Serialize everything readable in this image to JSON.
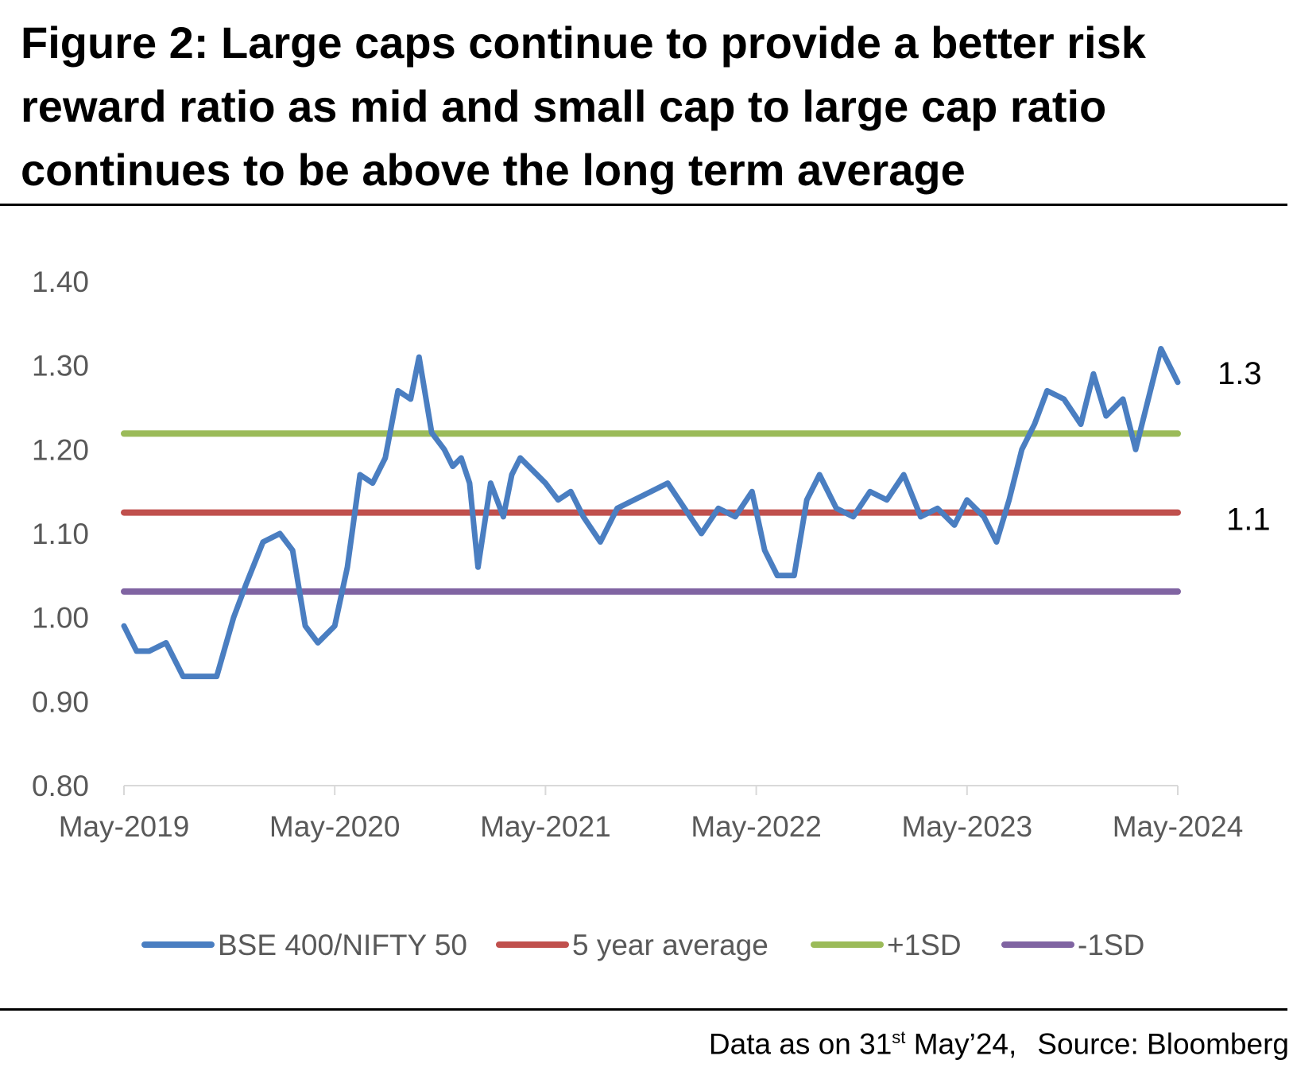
{
  "title": "Figure 2: Large caps continue to provide a better risk reward ratio as mid and small cap to large cap ratio continues to be above the long term average",
  "footer": {
    "data_as_on_prefix": "Data as on 31",
    "data_as_on_sup": "st",
    "data_as_on_suffix": " May’24,",
    "source": "Source: Bloomberg"
  },
  "chart_data": {
    "type": "line",
    "title": "Figure 2: Large caps continue to provide a better risk reward ratio as mid and small cap to large cap ratio continues to be above the long term average",
    "xlabel": "",
    "ylabel": "",
    "ylim": [
      0.8,
      1.4
    ],
    "yticks": [
      "1.40",
      "1.30",
      "1.20",
      "1.10",
      "1.00",
      "0.90",
      "0.80"
    ],
    "xlim": [
      2019.0,
      2024.0
    ],
    "xticks": [
      "May-2019",
      "May-2020",
      "May-2021",
      "May-2022",
      "May-2023",
      "May-2024"
    ],
    "legend_position": "bottom",
    "grid": false,
    "colors": {
      "ratio": "#4A7EC1",
      "average": "#C0504D",
      "plus_sd": "#9BBB59",
      "minus_sd": "#8064A2",
      "axis": "#d9d9d9",
      "tick_text": "#595959"
    },
    "end_labels": [
      "1.3",
      "1.1"
    ],
    "series": [
      {
        "name": "BSE 400/NIFTY 50",
        "x": [
          2019.0,
          2019.06,
          2019.12,
          2019.2,
          2019.28,
          2019.36,
          2019.44,
          2019.52,
          2019.58,
          2019.66,
          2019.74,
          2019.8,
          2019.86,
          2019.92,
          2020.0,
          2020.06,
          2020.12,
          2020.18,
          2020.24,
          2020.3,
          2020.36,
          2020.4,
          2020.46,
          2020.52,
          2020.56,
          2020.6,
          2020.64,
          2020.68,
          2020.74,
          2020.8,
          2020.84,
          2020.88,
          2020.96,
          2021.0,
          2021.06,
          2021.12,
          2021.18,
          2021.26,
          2021.34,
          2021.42,
          2021.5,
          2021.58,
          2021.66,
          2021.74,
          2021.82,
          2021.9,
          2021.98,
          2022.04,
          2022.1,
          2022.18,
          2022.24,
          2022.3,
          2022.38,
          2022.46,
          2022.54,
          2022.62,
          2022.7,
          2022.78,
          2022.86,
          2022.94,
          2023.0,
          2023.08,
          2023.14,
          2023.2,
          2023.26,
          2023.32,
          2023.38,
          2023.46,
          2023.54,
          2023.6,
          2023.66,
          2023.74,
          2023.8,
          2023.86,
          2023.92,
          2024.0
        ],
        "values": [
          0.99,
          0.96,
          0.96,
          0.97,
          0.93,
          0.93,
          0.93,
          1.0,
          1.04,
          1.09,
          1.1,
          1.08,
          0.99,
          0.97,
          0.99,
          1.06,
          1.17,
          1.16,
          1.19,
          1.27,
          1.26,
          1.31,
          1.22,
          1.2,
          1.18,
          1.19,
          1.16,
          1.06,
          1.16,
          1.12,
          1.17,
          1.19,
          1.17,
          1.16,
          1.14,
          1.15,
          1.12,
          1.09,
          1.13,
          1.14,
          1.15,
          1.16,
          1.13,
          1.1,
          1.13,
          1.12,
          1.15,
          1.08,
          1.05,
          1.05,
          1.14,
          1.17,
          1.13,
          1.12,
          1.15,
          1.14,
          1.17,
          1.12,
          1.13,
          1.11,
          1.14,
          1.12,
          1.09,
          1.14,
          1.2,
          1.23,
          1.27,
          1.26,
          1.23,
          1.29,
          1.24,
          1.26,
          1.2,
          1.26,
          1.32,
          1.28
        ]
      },
      {
        "name": "5 year average",
        "x": [
          2019.0,
          2024.0
        ],
        "values": [
          1.125,
          1.125
        ]
      },
      {
        "name": "+1SD",
        "x": [
          2019.0,
          2024.0
        ],
        "values": [
          1.219,
          1.219
        ]
      },
      {
        "name": "-1SD",
        "x": [
          2019.0,
          2024.0
        ],
        "values": [
          1.031,
          1.031
        ]
      }
    ]
  }
}
